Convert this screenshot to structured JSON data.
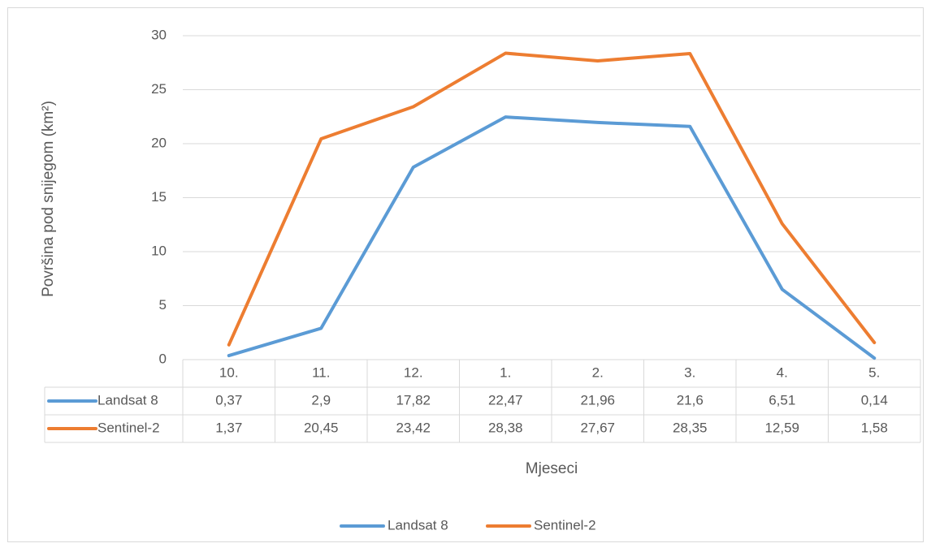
{
  "chart_data": {
    "type": "line",
    "y_label": "Površina pod snijegom (km²)",
    "x_label": "Mjeseci",
    "categories": [
      "10.",
      "11.",
      "12.",
      "1.",
      "2.",
      "3.",
      "4.",
      "5."
    ],
    "series": [
      {
        "name": "Landsat 8",
        "color": "#5b9bd5",
        "values": [
          0.37,
          2.9,
          17.82,
          22.47,
          21.96,
          21.6,
          6.51,
          0.14
        ],
        "value_labels": [
          "0,37",
          "2,9",
          "17,82",
          "22,47",
          "21,96",
          "21,6",
          "6,51",
          "0,14"
        ]
      },
      {
        "name": "Sentinel-2",
        "color": "#ed7d31",
        "values": [
          1.37,
          20.45,
          23.42,
          28.38,
          27.67,
          28.35,
          12.59,
          1.58
        ],
        "value_labels": [
          "1,37",
          "20,45",
          "23,42",
          "28,38",
          "27,67",
          "28,35",
          "12,59",
          "1,58"
        ]
      }
    ],
    "ylim": [
      0,
      30
    ],
    "yticks": [
      0,
      5,
      10,
      15,
      20,
      25,
      30
    ],
    "grid": true,
    "legend": "bottom"
  }
}
